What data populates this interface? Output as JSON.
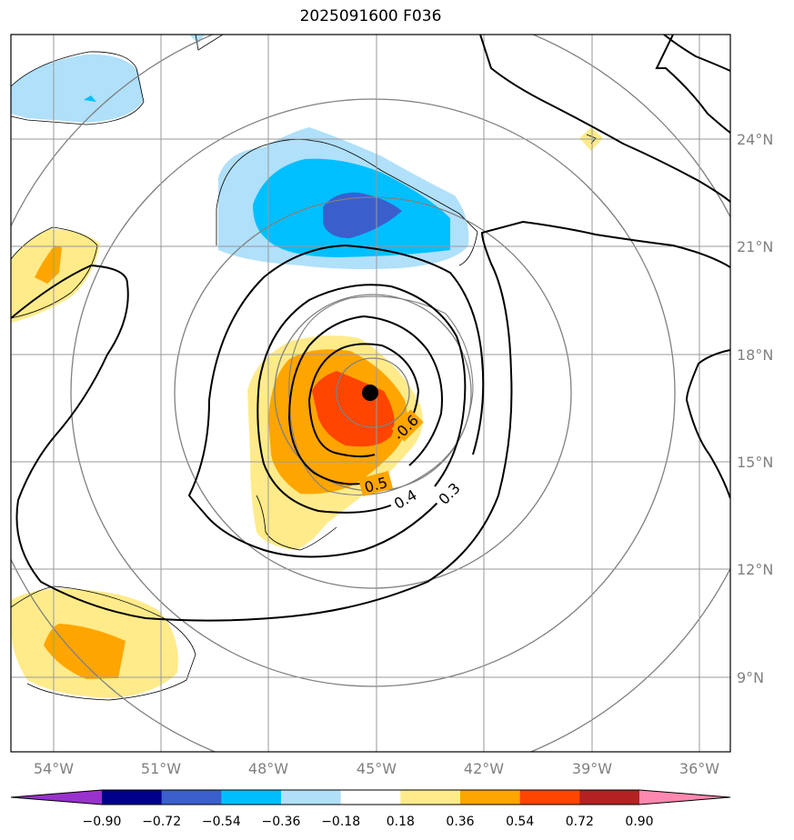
{
  "title": "2025091600 F036",
  "map": {
    "lon_labels": [
      "54°W",
      "51°W",
      "48°W",
      "45°W",
      "42°W",
      "39°W",
      "36°W"
    ],
    "lat_labels": [
      "24°N",
      "21°N",
      "18°N",
      "15°N",
      "12°N",
      "9°N"
    ],
    "lon_range": [
      -55.2,
      -35.2
    ],
    "lat_range": [
      7.0,
      27.0
    ],
    "grid": true,
    "gridline_color": "#999999"
  },
  "storm_center": {
    "lon": -45.2,
    "lat": 16.9
  },
  "contour_labels": [
    "0.6",
    "0.5",
    "0.4",
    "0.3"
  ],
  "colorbar": {
    "tick_labels": [
      "−0.90",
      "−0.72",
      "−0.54",
      "−0.36",
      "−0.18",
      "0.18",
      "0.36",
      "0.54",
      "0.72",
      "0.90"
    ],
    "colors": [
      "#9932cc",
      "#00008b",
      "#3a5fcd",
      "#00bfff",
      "#b0e0fa",
      "#ffffff",
      "#ffeb8a",
      "#ffa500",
      "#ff4500",
      "#b22222",
      "#ff88b0"
    ],
    "extend": "both"
  },
  "fill_colors": {
    "light_blue": "#b0e0fa",
    "blue": "#00bfff",
    "dark_blue": "#3a5fcd",
    "light_yellow": "#ffeb8a",
    "orange": "#ffa500",
    "red_orange": "#ff4500"
  }
}
